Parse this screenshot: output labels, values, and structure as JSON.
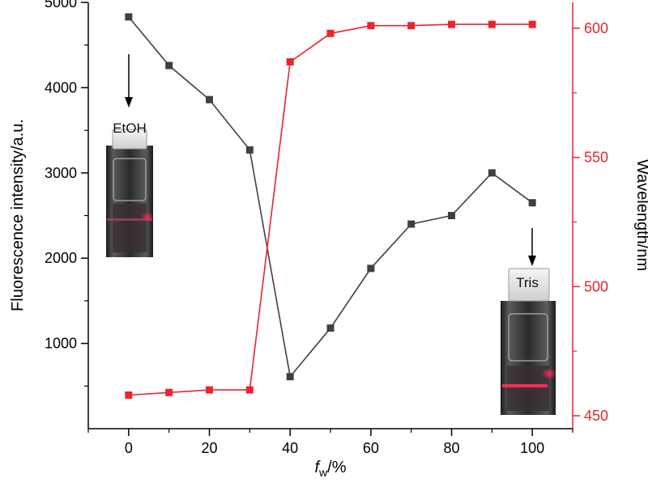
{
  "chart_data": {
    "type": "line",
    "title": "",
    "xlabel_italic": "f",
    "xlabel_sub": "w",
    "xlabel_suffix": "/%",
    "ylabel_left": "Fluorescence intensity/a.u.",
    "ylabel_right": "Wavelength/nm",
    "xlim": [
      -10,
      110
    ],
    "ylim_left": [
      0,
      5000
    ],
    "ylim_right": [
      445,
      610
    ],
    "x_ticks": [
      "0",
      "20",
      "40",
      "60",
      "80",
      "100"
    ],
    "y_left_ticks": [
      "1000",
      "2000",
      "3000",
      "4000",
      "5000"
    ],
    "y_right_ticks": [
      "450",
      "500",
      "550",
      "600"
    ],
    "x": [
      0,
      10,
      20,
      30,
      40,
      50,
      60,
      70,
      80,
      90,
      100
    ],
    "series": [
      {
        "axis": "left",
        "color": "#404040",
        "marker": "square",
        "values": [
          4830,
          4260,
          3860,
          3270,
          610,
          1180,
          1880,
          2400,
          2500,
          3000,
          2650
        ]
      },
      {
        "axis": "right",
        "color": "#e8262b",
        "marker": "square",
        "values": [
          458,
          459,
          460,
          460,
          587,
          598,
          601,
          601,
          601.5,
          601.5,
          601.5
        ]
      }
    ],
    "annotations": [
      {
        "label": "EtOH",
        "target_x": 0
      },
      {
        "label": "Tris",
        "target_x": 100
      }
    ],
    "grid": false,
    "legend": "none"
  }
}
